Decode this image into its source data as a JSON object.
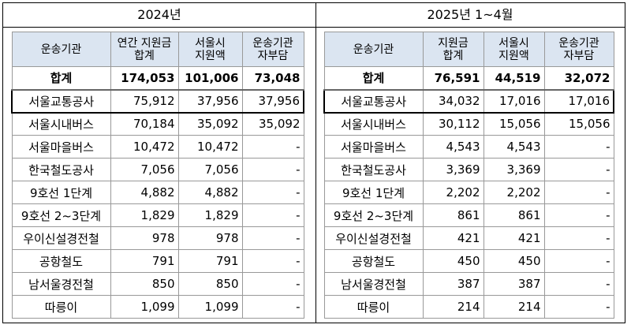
{
  "left": {
    "title": "2024년",
    "headers": [
      "운송기관",
      "연간 지원금\n합계",
      "서울시\n지원액",
      "운송기관\n자부담"
    ],
    "rows": [
      [
        "합계",
        "174,053",
        "101,006",
        "73,048"
      ],
      [
        "서울교통공사",
        "75,912",
        "37,956",
        "37,956"
      ],
      [
        "서울시내버스",
        "70,184",
        "35,092",
        "35,092"
      ],
      [
        "서울마을버스",
        "10,472",
        "10,472",
        "-"
      ],
      [
        "한국철도공사",
        "7,056",
        "7,056",
        "-"
      ],
      [
        "9호선 1단계",
        "4,882",
        "4,882",
        "-"
      ],
      [
        "9호선 2~3단계",
        "1,829",
        "1,829",
        "-"
      ],
      [
        "우이신설경전철",
        "978",
        "978",
        "-"
      ],
      [
        "공항철도",
        "791",
        "791",
        "-"
      ],
      [
        "남서울경전철",
        "850",
        "850",
        "-"
      ],
      [
        "따릉이",
        "1,099",
        "1,099",
        "-"
      ]
    ]
  },
  "right": {
    "title": "2025년 1~4월",
    "headers": [
      "운송기관",
      "지원금\n합계",
      "서울시\n지원액",
      "운송기관\n자부담"
    ],
    "rows": [
      [
        "합계",
        "76,591",
        "44,519",
        "32,072"
      ],
      [
        "서울교통공사",
        "34,032",
        "17,016",
        "17,016"
      ],
      [
        "서울시내버스",
        "30,112",
        "15,056",
        "15,056"
      ],
      [
        "서울마을버스",
        "4,543",
        "4,543",
        "-"
      ],
      [
        "한국철도공사",
        "3,369",
        "3,369",
        "-"
      ],
      [
        "9호선 1단계",
        "2,202",
        "2,202",
        "-"
      ],
      [
        "9호선 2~3단계",
        "861",
        "861",
        "-"
      ],
      [
        "우이신설경전철",
        "421",
        "421",
        "-"
      ],
      [
        "공항철도",
        "450",
        "450",
        "-"
      ],
      [
        "남서울경전철",
        "387",
        "387",
        "-"
      ],
      [
        "따릉이",
        "214",
        "214",
        "-"
      ]
    ]
  },
  "colors": {
    "header_bg": "#dbe5f1",
    "border": "#999999"
  }
}
